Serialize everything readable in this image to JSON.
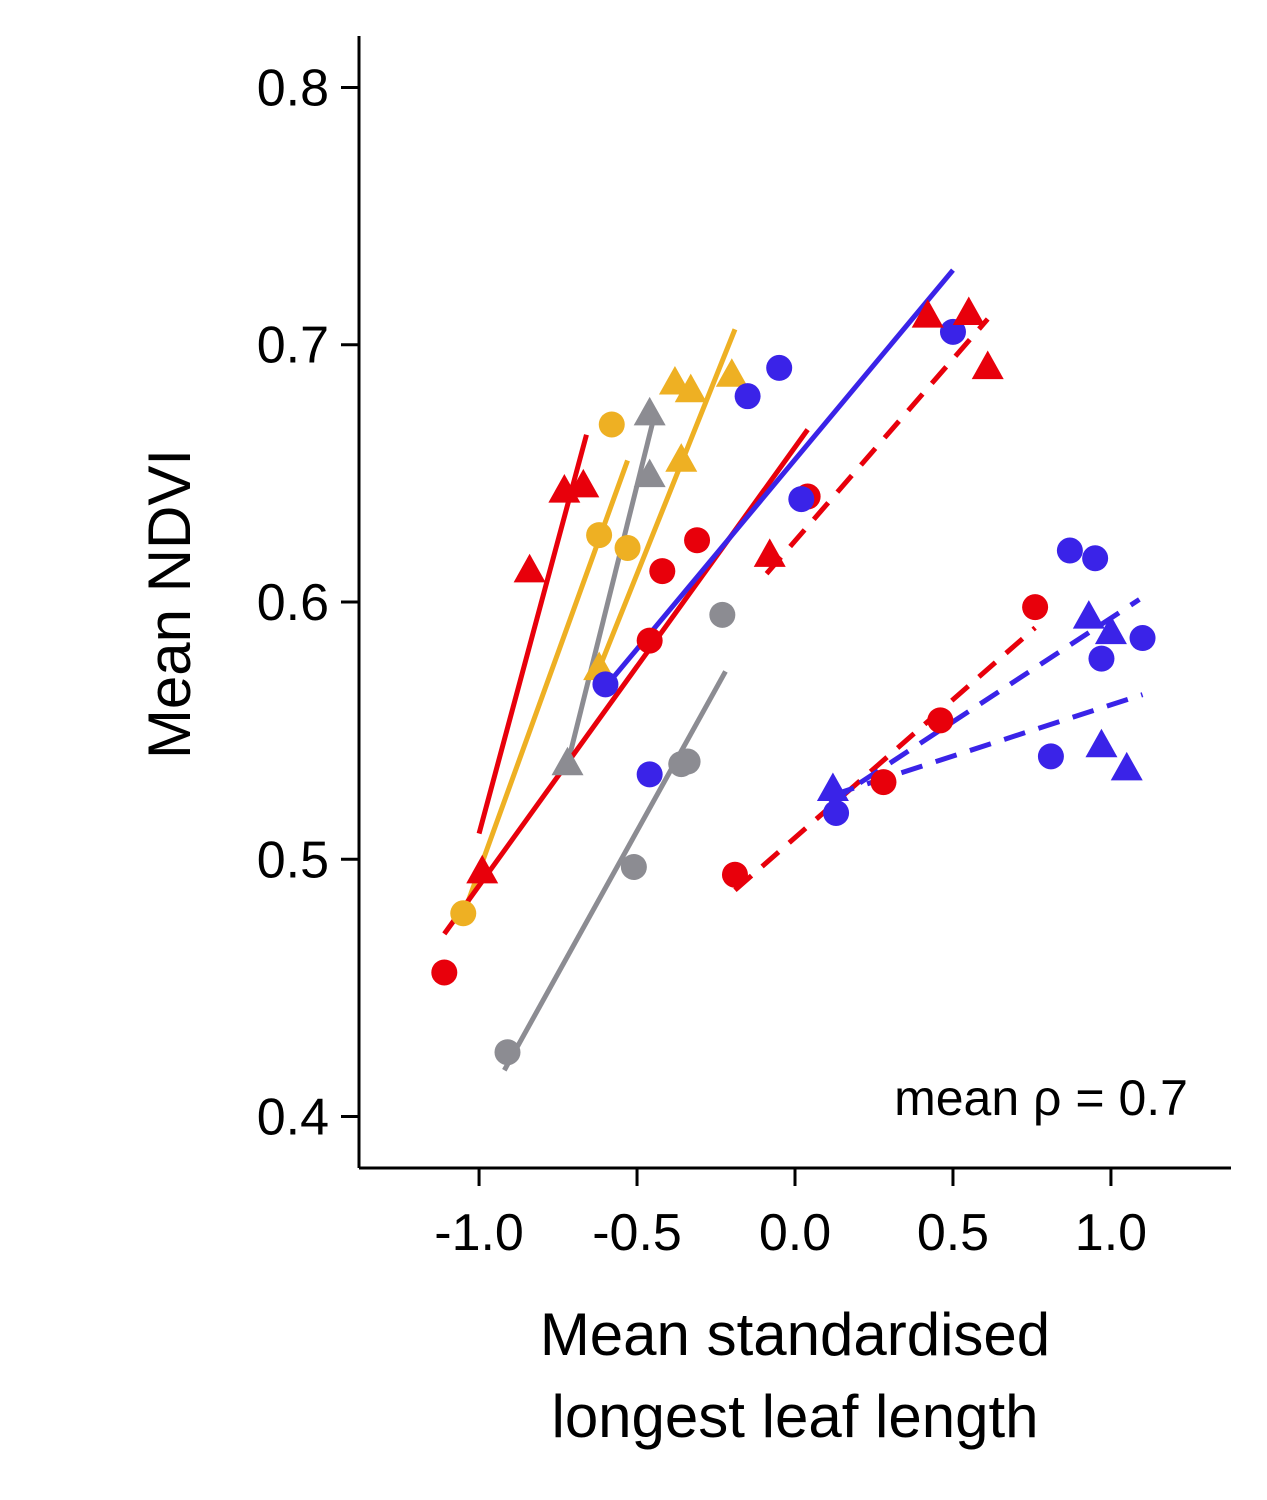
{
  "chart_data": {
    "type": "scatter",
    "xlabel_lines": [
      "Mean standardised",
      "longest leaf length"
    ],
    "ylabel": "Mean NDVI",
    "xlim": [
      -1.38,
      1.38
    ],
    "ylim": [
      0.38,
      0.82
    ],
    "xticks": [
      -1.0,
      -0.5,
      0.0,
      0.5,
      1.0
    ],
    "xtick_labels": [
      "-1.0",
      "-0.5",
      "0.0",
      "0.5",
      "1.0"
    ],
    "yticks": [
      0.4,
      0.5,
      0.6,
      0.7,
      0.8
    ],
    "ytick_labels": [
      "0.4",
      "0.5",
      "0.6",
      "0.7",
      "0.8"
    ],
    "annotation": "mean ρ = 0.7",
    "grid": false,
    "colors": {
      "red": "#e8000b",
      "blue": "#3a23e8",
      "orange": "#eeb023",
      "gray": "#8c8c92"
    },
    "series": [
      {
        "color": "red",
        "marker": "triangle",
        "line": "solid",
        "points": [
          [
            -0.99,
            0.495
          ],
          [
            -0.84,
            0.612
          ],
          [
            -0.73,
            0.643
          ],
          [
            -0.67,
            0.645
          ]
        ],
        "fit": [
          [
            -1.0,
            0.51
          ],
          [
            -0.66,
            0.665
          ]
        ]
      },
      {
        "color": "orange",
        "marker": "circle",
        "line": "solid",
        "points": [
          [
            -1.05,
            0.479
          ],
          [
            -0.62,
            0.626
          ],
          [
            -0.58,
            0.669
          ],
          [
            -0.53,
            0.621
          ]
        ],
        "fit": [
          [
            -1.06,
            0.475
          ],
          [
            -0.53,
            0.655
          ]
        ]
      },
      {
        "color": "orange",
        "marker": "triangle",
        "line": "solid",
        "points": [
          [
            -0.62,
            0.574
          ],
          [
            -0.36,
            0.655
          ],
          [
            -0.38,
            0.685
          ],
          [
            -0.33,
            0.682
          ],
          [
            -0.2,
            0.688
          ]
        ],
        "fit": [
          [
            -0.63,
            0.571
          ],
          [
            -0.19,
            0.706
          ]
        ]
      },
      {
        "color": "gray",
        "marker": "triangle",
        "line": "solid",
        "points": [
          [
            -0.72,
            0.537
          ],
          [
            -0.46,
            0.649
          ],
          [
            -0.46,
            0.673
          ]
        ],
        "fit": [
          [
            -0.72,
            0.537
          ],
          [
            -0.45,
            0.67
          ]
        ]
      },
      {
        "color": "gray",
        "marker": "circle",
        "line": "solid",
        "points": [
          [
            -0.91,
            0.425
          ],
          [
            -0.51,
            0.497
          ],
          [
            -0.36,
            0.537
          ],
          [
            -0.34,
            0.538
          ],
          [
            -0.23,
            0.595
          ]
        ],
        "fit": [
          [
            -0.92,
            0.418
          ],
          [
            -0.22,
            0.573
          ]
        ]
      },
      {
        "color": "red",
        "marker": "circle",
        "line": "solid",
        "points": [
          [
            -1.11,
            0.456
          ],
          [
            -0.46,
            0.585
          ],
          [
            -0.42,
            0.612
          ],
          [
            -0.31,
            0.624
          ],
          [
            0.04,
            0.641
          ]
        ],
        "fit": [
          [
            -1.11,
            0.471
          ],
          [
            0.04,
            0.667
          ]
        ]
      },
      {
        "color": "blue",
        "marker": "circle",
        "line": "solid",
        "points": [
          [
            -0.6,
            0.568
          ],
          [
            -0.46,
            0.533
          ],
          [
            -0.15,
            0.68
          ],
          [
            -0.05,
            0.691
          ],
          [
            0.02,
            0.64
          ],
          [
            0.5,
            0.705
          ]
        ],
        "fit": [
          [
            -0.6,
            0.567
          ],
          [
            0.5,
            0.729
          ]
        ]
      },
      {
        "color": "red",
        "marker": "triangle",
        "line": "dashed",
        "points": [
          [
            -0.08,
            0.618
          ],
          [
            0.42,
            0.711
          ],
          [
            0.55,
            0.712
          ],
          [
            0.61,
            0.691
          ]
        ],
        "fit": [
          [
            -0.09,
            0.611
          ],
          [
            0.61,
            0.71
          ]
        ]
      },
      {
        "color": "red",
        "marker": "circle",
        "line": "dashed",
        "points": [
          [
            -0.19,
            0.494
          ],
          [
            0.28,
            0.53
          ],
          [
            0.46,
            0.554
          ],
          [
            0.76,
            0.598
          ]
        ],
        "fit": [
          [
            -0.19,
            0.488
          ],
          [
            0.76,
            0.59
          ]
        ]
      },
      {
        "color": "blue",
        "marker": "circle",
        "line": "dashed",
        "points": [
          [
            0.13,
            0.518
          ],
          [
            0.81,
            0.54
          ],
          [
            0.87,
            0.62
          ],
          [
            0.95,
            0.617
          ],
          [
            0.97,
            0.578
          ],
          [
            1.1,
            0.586
          ]
        ],
        "fit": [
          [
            0.12,
            0.525
          ],
          [
            1.1,
            0.564
          ]
        ]
      },
      {
        "color": "blue",
        "marker": "triangle",
        "line": "dashed",
        "points": [
          [
            0.12,
            0.527
          ],
          [
            0.93,
            0.594
          ],
          [
            1.0,
            0.588
          ],
          [
            0.97,
            0.544
          ],
          [
            1.05,
            0.535
          ]
        ],
        "fit": [
          [
            0.11,
            0.522
          ],
          [
            1.09,
            0.601
          ]
        ]
      }
    ]
  }
}
